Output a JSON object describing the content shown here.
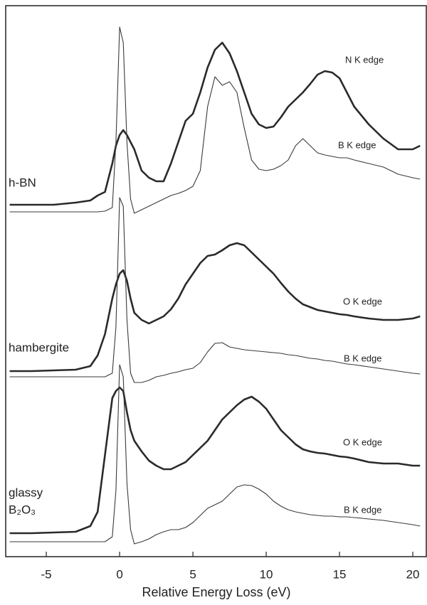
{
  "chart_data": {
    "type": "line",
    "xlabel": "Relative Energy Loss (eV)",
    "xlim": [
      -7.77,
      20.92
    ],
    "xticks": [
      -5,
      0,
      5,
      10,
      15,
      20
    ],
    "ylim": [
      0,
      775
    ],
    "x": [
      -7.5,
      -6,
      -4.5,
      -3,
      -2,
      -1.5,
      -1,
      -0.5,
      -0.25,
      0,
      0.25,
      0.5,
      0.75,
      1,
      1.5,
      2,
      2.5,
      3,
      3.5,
      4,
      4.5,
      5,
      5.5,
      6,
      6.5,
      7,
      7.5,
      8,
      8.5,
      9,
      9.5,
      10,
      10.5,
      11,
      11.5,
      12,
      12.5,
      13,
      13.5,
      14,
      14.5,
      15,
      15.5,
      16,
      17,
      18,
      19,
      20,
      20.5
    ],
    "series": [
      {
        "name": "N K edge",
        "color": "#2a2a2a",
        "values": [
          495,
          495,
          495,
          498,
          501,
          508,
          513,
          553,
          578,
          593,
          600,
          593,
          583,
          573,
          543,
          533,
          528,
          528,
          553,
          583,
          613,
          623,
          653,
          688,
          713,
          723,
          708,
          683,
          653,
          623,
          608,
          603,
          605,
          618,
          633,
          643,
          653,
          665,
          678,
          683,
          681,
          673,
          653,
          633,
          608,
          588,
          573,
          573,
          578
        ]
      },
      {
        "name": "B K edge",
        "color": "#3a3a3a",
        "values": [
          485,
          485,
          485,
          485,
          485,
          485,
          486,
          491,
          583,
          745,
          723,
          583,
          503,
          483,
          488,
          493,
          498,
          503,
          508,
          511,
          515,
          521,
          543,
          633,
          675,
          663,
          668,
          653,
          603,
          558,
          545,
          543,
          545,
          550,
          558,
          578,
          588,
          578,
          568,
          565,
          563,
          561,
          561,
          558,
          553,
          548,
          538,
          533,
          531
        ]
      },
      {
        "name": "O K edge",
        "color": "#2a2a2a",
        "values": [
          261,
          261,
          262,
          263,
          268,
          283,
          313,
          363,
          383,
          398,
          403,
          388,
          363,
          343,
          333,
          328,
          333,
          338,
          348,
          363,
          383,
          398,
          413,
          423,
          425,
          431,
          438,
          441,
          438,
          428,
          418,
          408,
          398,
          385,
          373,
          363,
          355,
          351,
          347,
          345,
          343,
          341,
          340,
          338,
          335,
          333,
          333,
          335,
          338
        ]
      },
      {
        "name": "B K edge",
        "color": "#3a3a3a",
        "values": [
          253,
          253,
          253,
          253,
          253,
          253,
          253,
          258,
          323,
          505,
          493,
          333,
          258,
          245,
          245,
          248,
          253,
          255,
          258,
          260,
          263,
          265,
          273,
          288,
          300,
          301,
          295,
          293,
          291,
          290,
          289,
          288,
          287,
          286,
          284,
          283,
          281,
          279,
          278,
          276,
          275,
          273,
          271,
          270,
          267,
          264,
          261,
          258,
          257
        ]
      },
      {
        "name": "O K edge",
        "color": "#2a2a2a",
        "values": [
          33,
          33,
          34,
          35,
          43,
          63,
          143,
          223,
          233,
          238,
          233,
          203,
          178,
          163,
          148,
          135,
          128,
          123,
          123,
          128,
          133,
          143,
          153,
          163,
          178,
          193,
          203,
          213,
          221,
          225,
          218,
          208,
          193,
          178,
          168,
          158,
          151,
          148,
          146,
          145,
          143,
          141,
          140,
          138,
          133,
          131,
          131,
          128,
          128
        ]
      },
      {
        "name": "B K edge",
        "color": "#3a3a3a",
        "values": [
          21,
          21,
          21,
          21,
          21,
          21,
          21,
          28,
          93,
          270,
          253,
          103,
          38,
          18,
          21,
          25,
          31,
          35,
          38,
          38,
          41,
          48,
          58,
          68,
          73,
          78,
          88,
          98,
          101,
          100,
          95,
          88,
          78,
          71,
          66,
          63,
          61,
          59,
          58,
          57,
          57,
          56,
          56,
          55,
          53,
          51,
          48,
          45,
          43
        ]
      }
    ],
    "annotations": [
      "h-BN",
      "hambergite",
      "glassy",
      "B₂O₃"
    ]
  }
}
